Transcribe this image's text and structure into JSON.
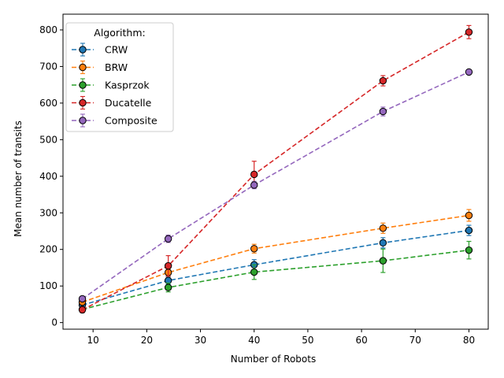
{
  "chart_data": {
    "type": "line",
    "xlabel": "Number of Robots",
    "ylabel": "Mean number of transits",
    "x": [
      8,
      24,
      40,
      64,
      80
    ],
    "xlim": [
      4.4,
      83.6
    ],
    "ylim": [
      -18,
      843
    ],
    "xticks": [
      10,
      20,
      30,
      40,
      50,
      60,
      70,
      80
    ],
    "yticks": [
      0,
      100,
      200,
      300,
      400,
      500,
      600,
      700,
      800
    ],
    "grid": false,
    "legend": {
      "title": "Algorithm:",
      "placement": "top-left"
    },
    "series": [
      {
        "name": "CRW",
        "color": "#1f77b4",
        "values": [
          48,
          115,
          158,
          218,
          252
        ],
        "errors": [
          6,
          10,
          14,
          14,
          14
        ]
      },
      {
        "name": "BRW",
        "color": "#ff7f0e",
        "values": [
          56,
          137,
          202,
          258,
          293
        ],
        "errors": [
          6,
          10,
          12,
          14,
          16
        ]
      },
      {
        "name": "Kasprzok",
        "color": "#2ca02c",
        "values": [
          36,
          96,
          138,
          169,
          198
        ],
        "errors": [
          6,
          12,
          20,
          32,
          24
        ]
      },
      {
        "name": "Ducatelle",
        "color": "#d62728",
        "values": [
          35,
          155,
          405,
          661,
          794
        ],
        "errors": [
          8,
          28,
          36,
          14,
          18
        ]
      },
      {
        "name": "Composite",
        "color": "#9467bd",
        "values": [
          65,
          229,
          376,
          577,
          685
        ],
        "errors": [
          6,
          10,
          10,
          12,
          6
        ]
      }
    ]
  }
}
